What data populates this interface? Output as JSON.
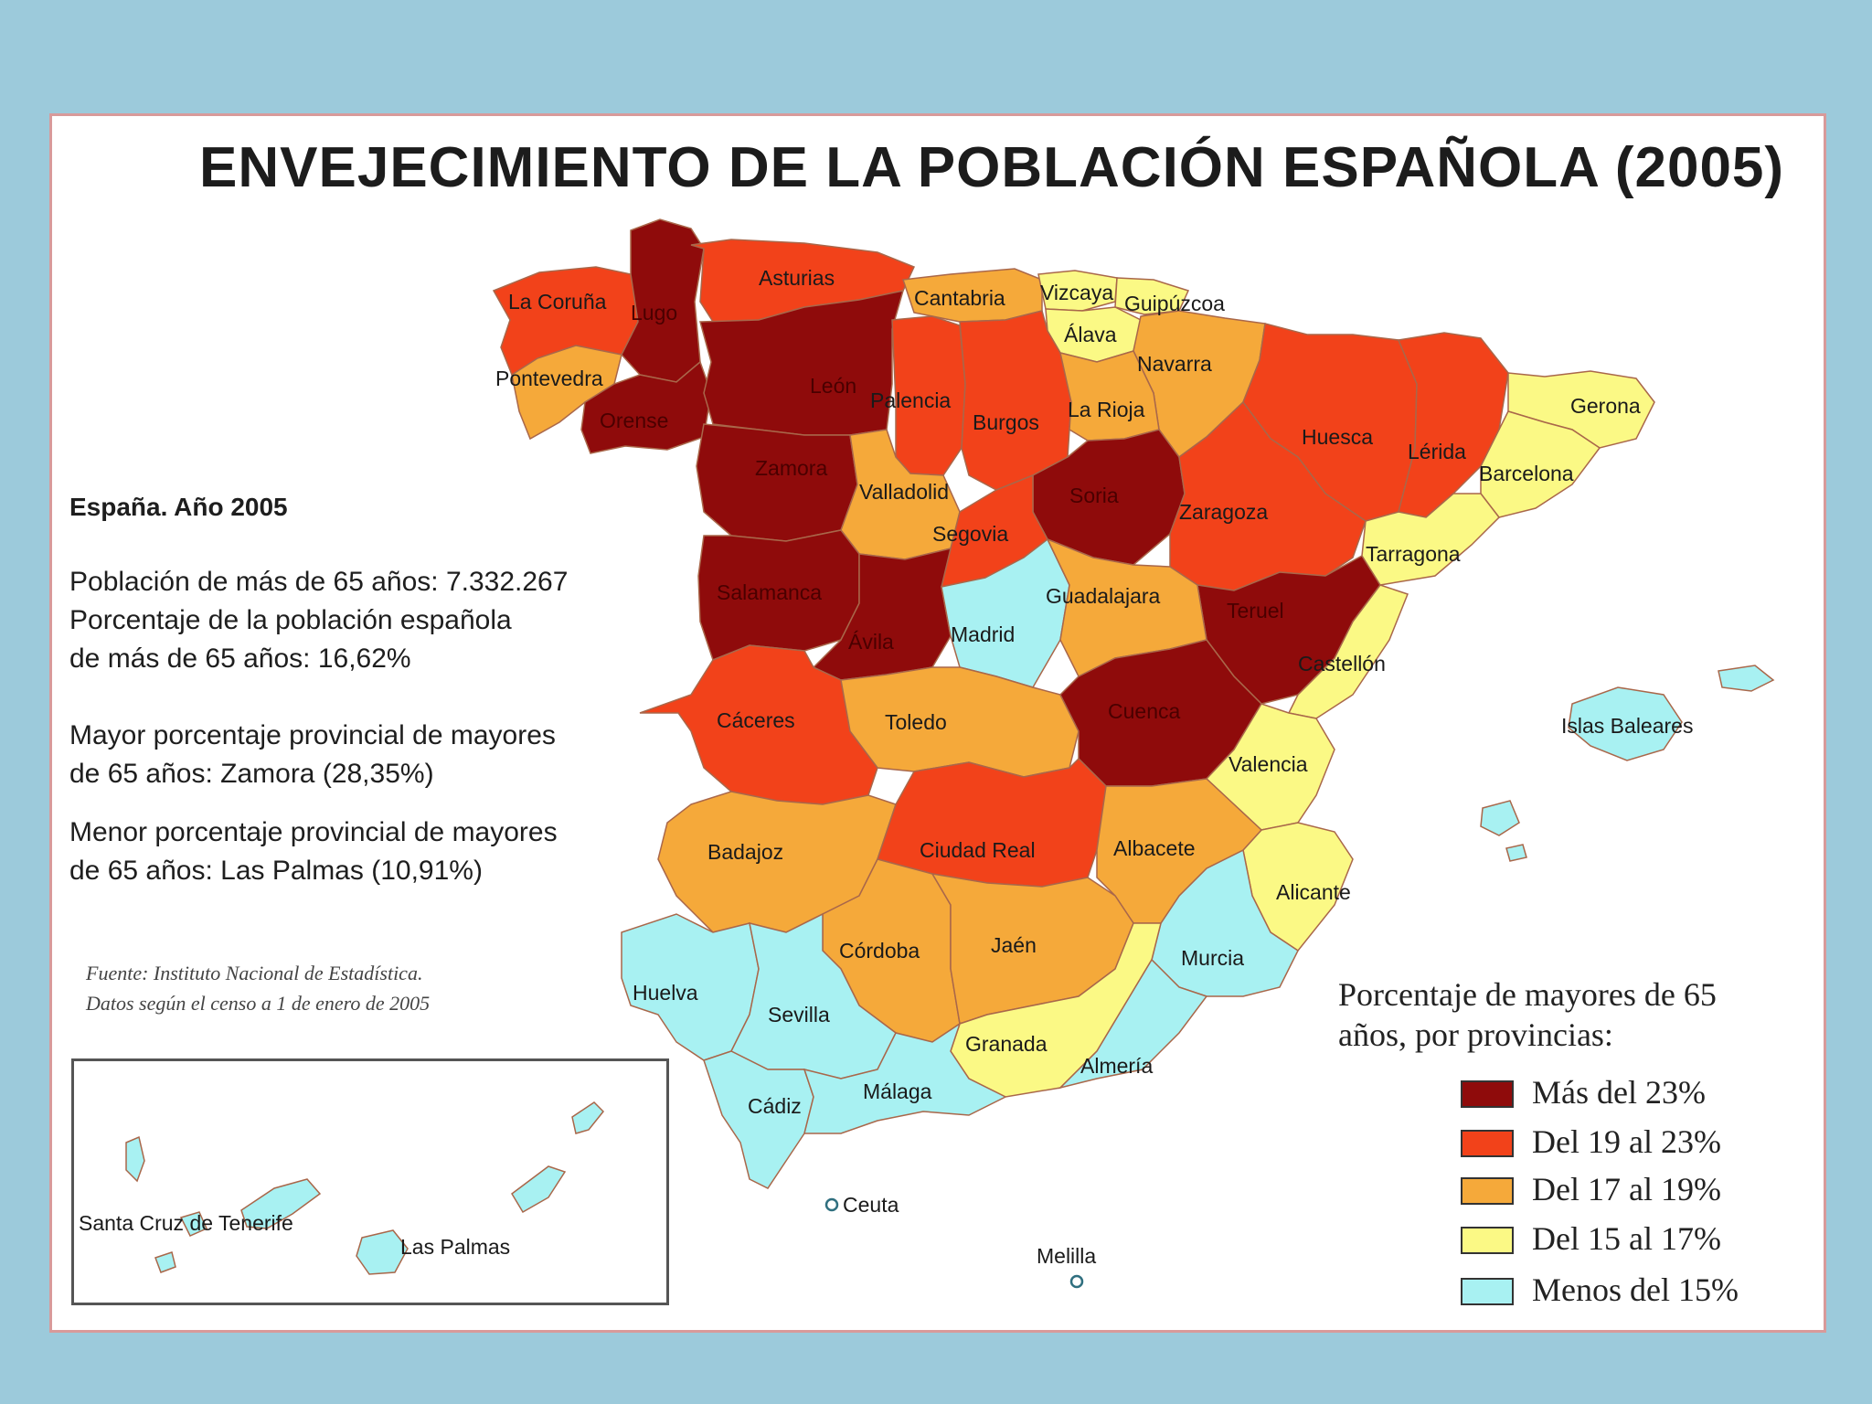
{
  "title": "ENVEJECIMIENTO DE LA POBLACIÓN ESPAÑOLA (2005)",
  "stats": {
    "heading": "España. Año 2005",
    "pop_line": "Población de más de 65 años: 7.332.267",
    "pct_line1": "Porcentaje de la población española",
    "pct_line2": "de más de 65 años: 16,62%",
    "max_line1": "Mayor porcentaje provincial de mayores",
    "max_line2": "de 65 años: Zamora (28,35%)",
    "min_line1": "Menor porcentaje provincial de mayores",
    "min_line2": "de 65 años: Las Palmas (10,91%)"
  },
  "source": {
    "line1": "Fuente: Instituto Nacional de Estadística.",
    "line2": "Datos según el censo a 1 de enero de 2005"
  },
  "legend": {
    "title_line1": "Porcentaje de mayores de 65",
    "title_line2": "años, por provincias:",
    "items": [
      {
        "label": "Más del 23%",
        "color": "#8f0b0b"
      },
      {
        "label": "Del 19 al 23%",
        "color": "#f2421a"
      },
      {
        "label": "Del 17 al 19%",
        "color": "#f5a93a"
      },
      {
        "label": "Del 15 al 17%",
        "color": "#fbf985"
      },
      {
        "label": "Menos del 15%",
        "color": "#a8f1f2"
      }
    ]
  },
  "provinces": {
    "la_coruna": "La Coruña",
    "lugo": "Lugo",
    "asturias": "Asturias",
    "cantabria": "Cantabria",
    "vizcaya": "Vizcaya",
    "guipuzcoa": "Guipúzcoa",
    "alava": "Álava",
    "navarra": "Navarra",
    "pontevedra": "Pontevedra",
    "orense": "Orense",
    "leon": "León",
    "palencia": "Palencia",
    "burgos": "Burgos",
    "la_rioja": "La Rioja",
    "huesca": "Huesca",
    "lerida": "Lérida",
    "gerona": "Gerona",
    "barcelona": "Barcelona",
    "zamora": "Zamora",
    "valladolid": "Valladolid",
    "soria": "Soria",
    "zaragoza": "Zaragoza",
    "tarragona": "Tarragona",
    "segovia": "Segovia",
    "salamanca": "Salamanca",
    "avila": "Ávila",
    "madrid": "Madrid",
    "guadalajara": "Guadalajara",
    "teruel": "Teruel",
    "castellon": "Castellón",
    "caceres": "Cáceres",
    "toledo": "Toledo",
    "cuenca": "Cuenca",
    "valencia": "Valencia",
    "islas_baleares": "Islas Baleares",
    "badajoz": "Badajoz",
    "ciudad_real": "Ciudad Real",
    "albacete": "Albacete",
    "alicante": "Alicante",
    "cordoba": "Córdoba",
    "jaen": "Jaén",
    "murcia": "Murcia",
    "huelva": "Huelva",
    "sevilla": "Sevilla",
    "granada": "Granada",
    "almeria": "Almería",
    "cadiz": "Cádiz",
    "malaga": "Málaga",
    "ceuta": "Ceuta",
    "melilla": "Melilla",
    "santa_cruz": "Santa Cruz de Tenerife",
    "las_palmas": "Las Palmas"
  }
}
